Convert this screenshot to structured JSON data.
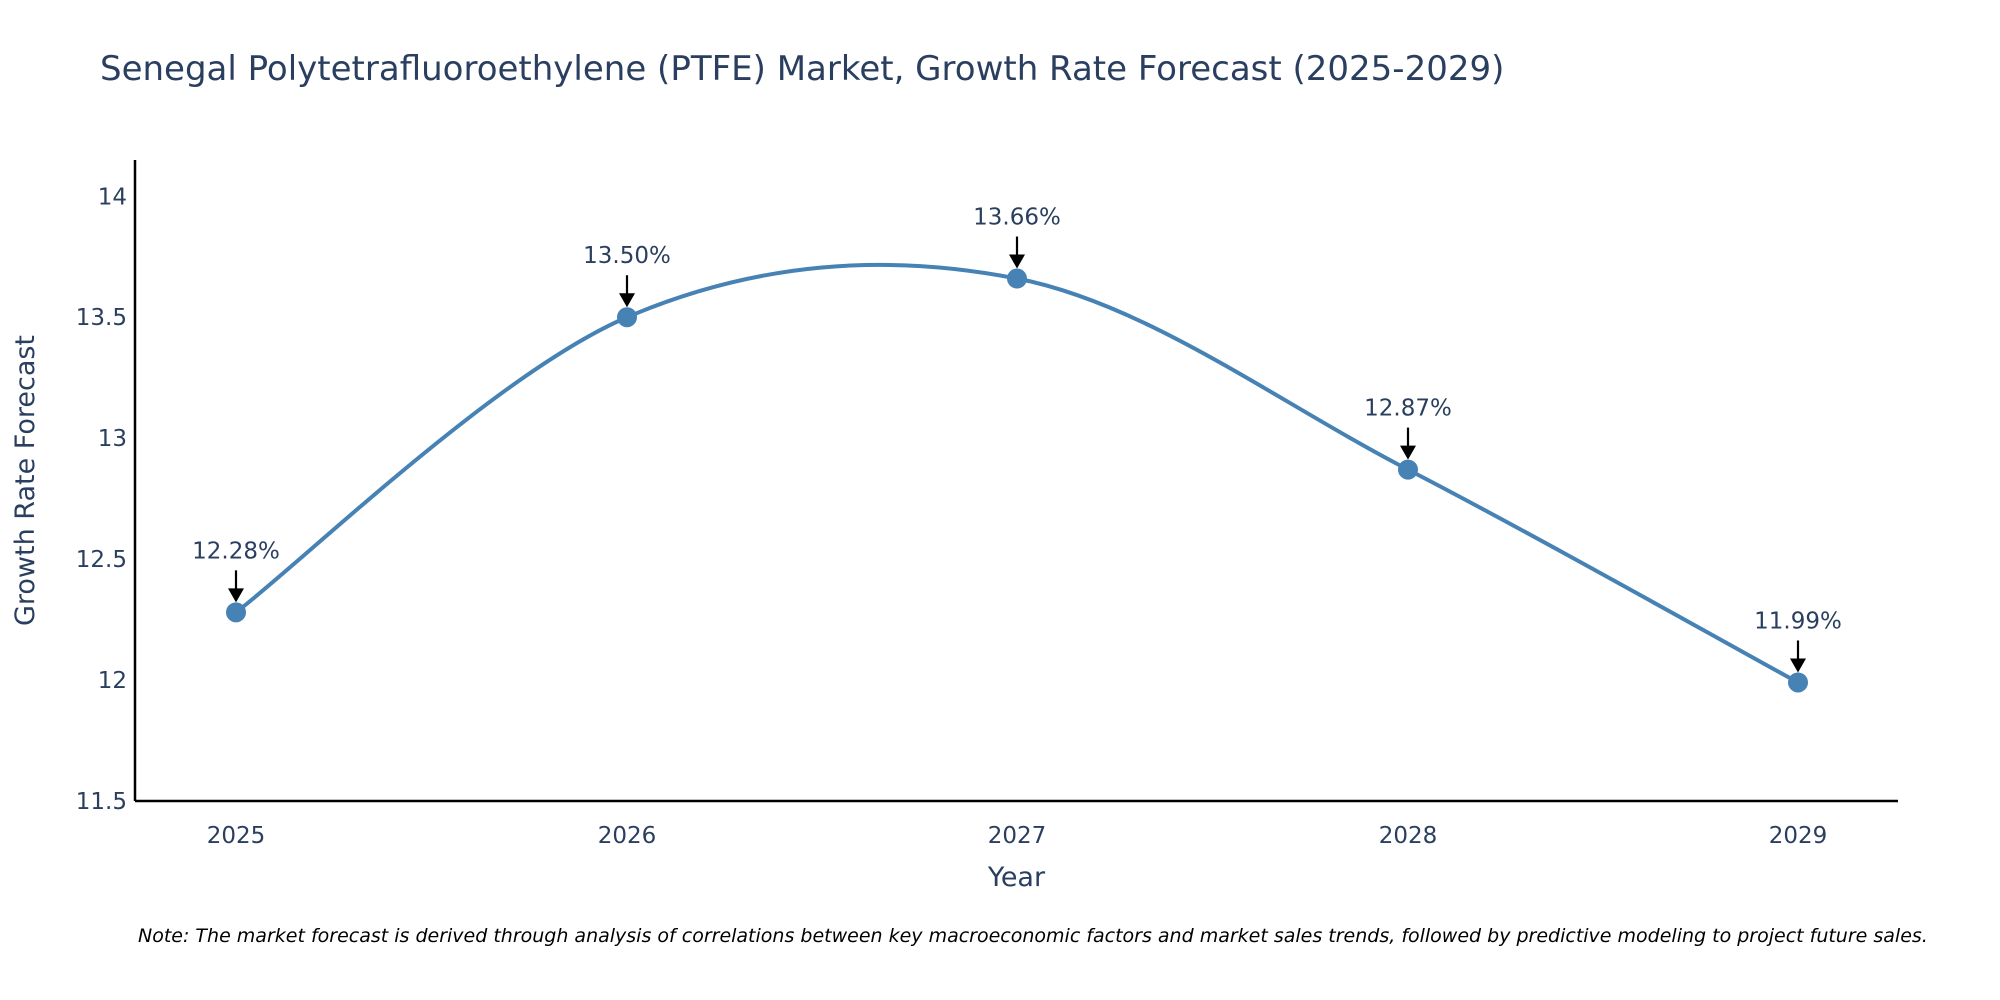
{
  "colors": {
    "line": "#4682b4",
    "marker": "#4682b4",
    "axis": "#000000",
    "text": "#2a3f5f",
    "arrow": "#000000"
  },
  "note": "Note: The market forecast is derived through analysis of correlations between key macroeconomic factors and market sales trends, followed by predictive modeling to project future sales.",
  "chart_data": {
    "type": "line",
    "title": "Senegal Polytetrafluoroethylene (PTFE) Market, Growth Rate Forecast (2025-2029)",
    "xlabel": "Year",
    "ylabel": "Growth Rate Forecast",
    "categories": [
      "2025",
      "2026",
      "2027",
      "2028",
      "2029"
    ],
    "series": [
      {
        "name": "Growth Rate Forecast",
        "values": [
          12.28,
          13.5,
          13.66,
          12.87,
          11.99
        ],
        "labels": [
          "12.28%",
          "13.50%",
          "13.66%",
          "12.87%",
          "11.99%"
        ]
      }
    ],
    "ylim": [
      11.5,
      14.15
    ],
    "yticks": [
      11.5,
      12,
      12.5,
      13,
      13.5,
      14
    ],
    "ytick_labels": [
      "11.5",
      "12",
      "12.5",
      "13",
      "13.5",
      "14"
    ],
    "line_shape": "spline",
    "grid": false,
    "legend": false
  }
}
